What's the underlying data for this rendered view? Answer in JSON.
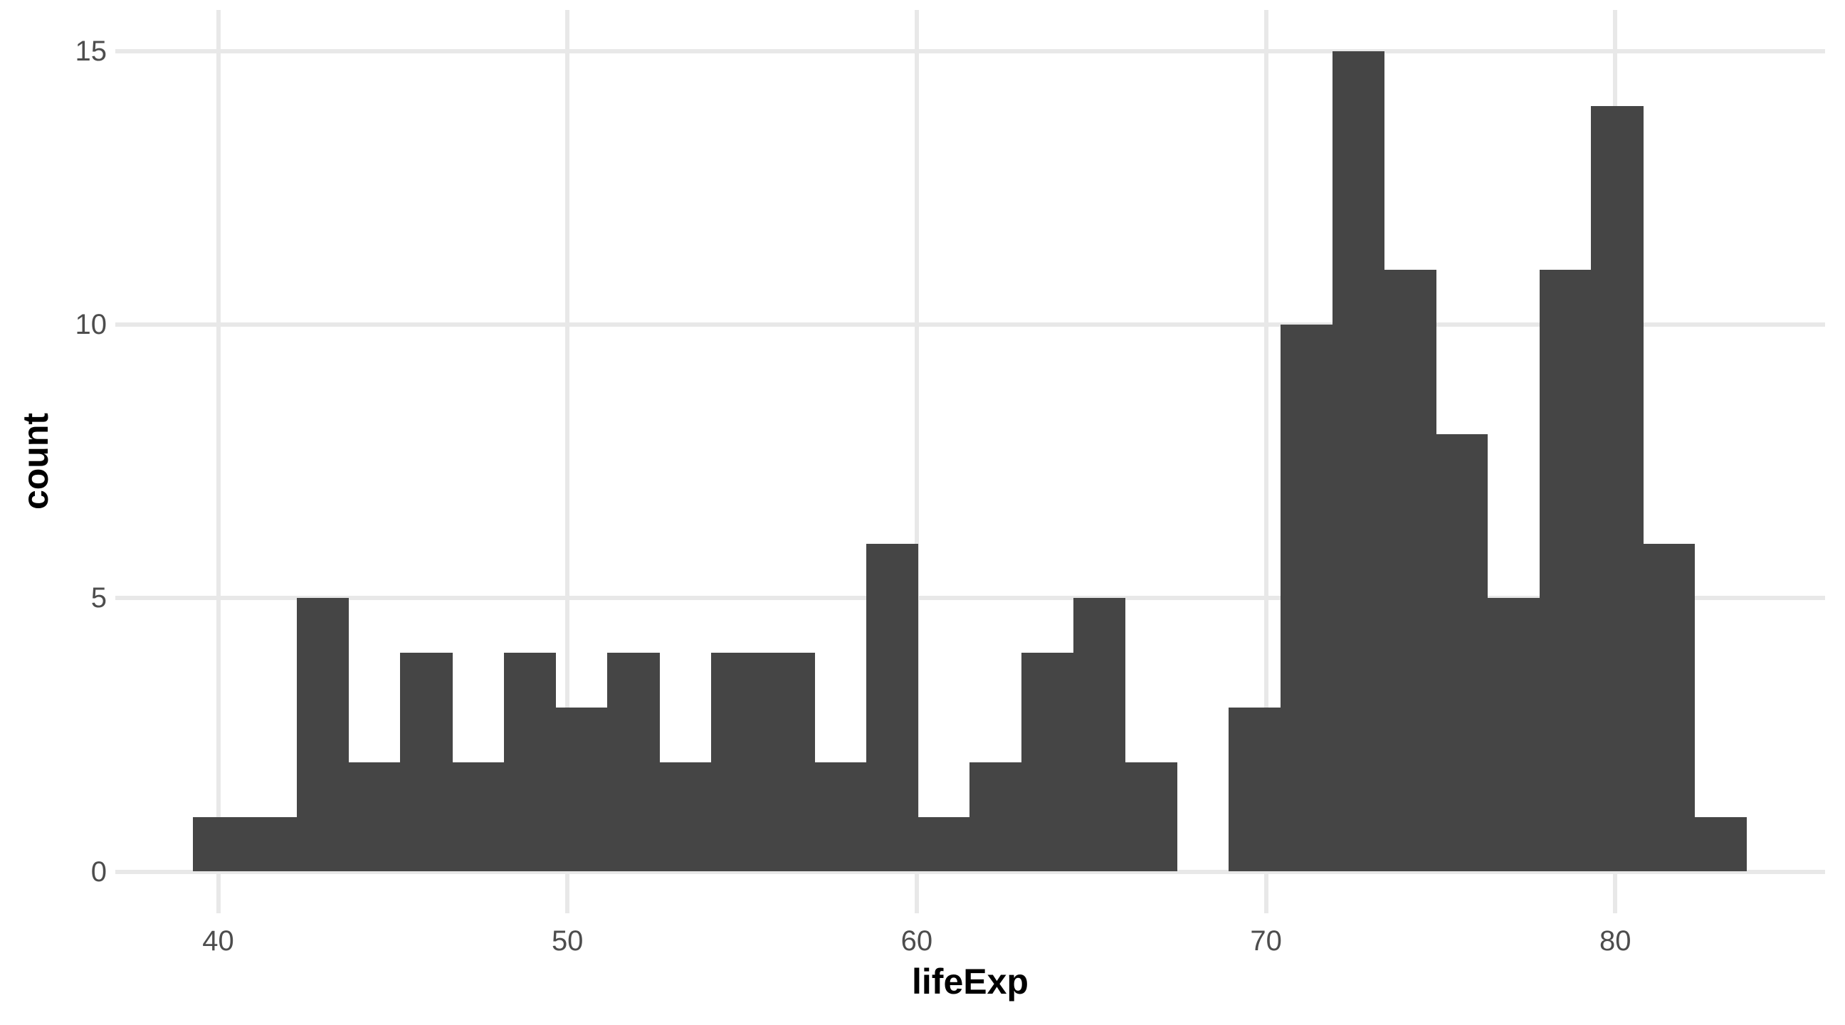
{
  "chart_data": {
    "type": "bar",
    "subtype": "histogram",
    "title": "",
    "xlabel": "lifeExp",
    "ylabel": "count",
    "x_ticks": [
      40,
      50,
      60,
      70,
      80
    ],
    "y_ticks": [
      0,
      5,
      10,
      15
    ],
    "xlim": [
      37.06,
      86.0
    ],
    "ylim": [
      -0.76,
      15.76
    ],
    "grid": "major-only",
    "legend": "none",
    "bin_start": 39.2837,
    "bin_width": 1.48241,
    "bin_centers": [
      40.02,
      41.51,
      42.99,
      44.47,
      45.96,
      47.44,
      48.92,
      50.4,
      51.89,
      53.37,
      54.85,
      56.34,
      57.82,
      59.3,
      60.78,
      62.27,
      63.75,
      65.23,
      66.72,
      68.2,
      69.68,
      71.16,
      72.65,
      74.13,
      75.61,
      77.1,
      78.58,
      80.06,
      81.54,
      83.03
    ],
    "counts": [
      1,
      1,
      5,
      2,
      4,
      2,
      4,
      3,
      4,
      2,
      4,
      4,
      2,
      6,
      1,
      2,
      4,
      5,
      2,
      0,
      3,
      10,
      15,
      11,
      8,
      5,
      11,
      14,
      6,
      1
    ],
    "total_count": 142,
    "colors": {
      "bar": "#454545",
      "grid": "#E8E8E8",
      "tick_text": "#4D4D4D",
      "title_text": "#000000",
      "background": "#FFFFFF"
    }
  }
}
